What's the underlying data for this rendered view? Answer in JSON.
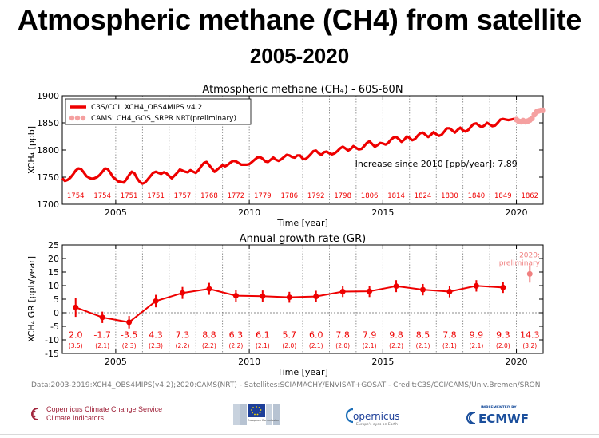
{
  "header": {
    "title": "Atmospheric methane (CH4) from satellite",
    "subtitle": "2005-2020"
  },
  "chart_data": [
    {
      "type": "line",
      "title": "Atmospheric methane (CH₄) - 60S-60N",
      "xlabel": "Time [year]",
      "ylabel": "XCH₄ [ppb]",
      "xlim": [
        2003.0,
        2021.0
      ],
      "ylim": [
        1700,
        1900
      ],
      "xticks": [
        2005,
        2010,
        2015,
        2020
      ],
      "yticks": [
        1700,
        1750,
        1800,
        1850,
        1900
      ],
      "legend_position": "top-left",
      "annotation": "Increase since 2010 [ppb/year]: 7.89",
      "series": [
        {
          "name": "C3S/CCI: XCH4_OBS4MIPS v4.2",
          "color": "#ee0000",
          "x": [
            2003.0,
            2003.1,
            2003.2,
            2003.3,
            2003.4,
            2003.5,
            2003.6,
            2003.7,
            2003.8,
            2003.9,
            2004.0,
            2004.1,
            2004.2,
            2004.3,
            2004.4,
            2004.5,
            2004.6,
            2004.7,
            2004.8,
            2004.9,
            2005.0,
            2005.1,
            2005.2,
            2005.3,
            2005.4,
            2005.5,
            2005.6,
            2005.7,
            2005.8,
            2005.9,
            2006.0,
            2006.1,
            2006.2,
            2006.3,
            2006.4,
            2006.5,
            2006.6,
            2006.7,
            2006.8,
            2006.9,
            2007.0,
            2007.1,
            2007.2,
            2007.3,
            2007.4,
            2007.5,
            2007.6,
            2007.7,
            2007.8,
            2007.9,
            2008.0,
            2008.1,
            2008.2,
            2008.3,
            2008.4,
            2008.5,
            2008.6,
            2008.7,
            2008.8,
            2008.9,
            2009.0,
            2009.1,
            2009.2,
            2009.3,
            2009.4,
            2009.5,
            2009.6,
            2009.7,
            2009.8,
            2009.9,
            2010.0,
            2010.1,
            2010.2,
            2010.3,
            2010.4,
            2010.5,
            2010.6,
            2010.7,
            2010.8,
            2010.9,
            2011.0,
            2011.1,
            2011.2,
            2011.3,
            2011.4,
            2011.5,
            2011.6,
            2011.7,
            2011.8,
            2011.9,
            2012.0,
            2012.1,
            2012.2,
            2012.3,
            2012.4,
            2012.5,
            2012.6,
            2012.7,
            2012.8,
            2012.9,
            2013.0,
            2013.1,
            2013.2,
            2013.3,
            2013.4,
            2013.5,
            2013.6,
            2013.7,
            2013.8,
            2013.9,
            2014.0,
            2014.1,
            2014.2,
            2014.3,
            2014.4,
            2014.5,
            2014.6,
            2014.7,
            2014.8,
            2014.9,
            2015.0,
            2015.1,
            2015.2,
            2015.3,
            2015.4,
            2015.5,
            2015.6,
            2015.7,
            2015.8,
            2015.9,
            2016.0,
            2016.1,
            2016.2,
            2016.3,
            2016.4,
            2016.5,
            2016.6,
            2016.7,
            2016.8,
            2016.9,
            2017.0,
            2017.1,
            2017.2,
            2017.3,
            2017.4,
            2017.5,
            2017.6,
            2017.7,
            2017.8,
            2017.9,
            2018.0,
            2018.1,
            2018.2,
            2018.3,
            2018.4,
            2018.5,
            2018.6,
            2018.7,
            2018.8,
            2018.9,
            2019.0,
            2019.1,
            2019.2,
            2019.3,
            2019.4,
            2019.5,
            2019.6,
            2019.7,
            2019.8,
            2019.9,
            2020.0
          ],
          "values": [
            1748,
            1743,
            1745,
            1749,
            1755,
            1762,
            1766,
            1765,
            1759,
            1752,
            1749,
            1747,
            1748,
            1750,
            1754,
            1760,
            1766,
            1765,
            1758,
            1750,
            1746,
            1742,
            1741,
            1740,
            1746,
            1754,
            1760,
            1757,
            1748,
            1741,
            1738,
            1740,
            1746,
            1752,
            1758,
            1760,
            1758,
            1756,
            1759,
            1757,
            1752,
            1748,
            1753,
            1758,
            1764,
            1762,
            1760,
            1759,
            1763,
            1760,
            1758,
            1763,
            1770,
            1776,
            1778,
            1772,
            1766,
            1760,
            1764,
            1768,
            1772,
            1770,
            1773,
            1777,
            1780,
            1779,
            1776,
            1773,
            1773,
            1773,
            1774,
            1778,
            1782,
            1786,
            1787,
            1784,
            1779,
            1778,
            1782,
            1786,
            1782,
            1780,
            1783,
            1787,
            1791,
            1790,
            1787,
            1786,
            1790,
            1790,
            1784,
            1783,
            1787,
            1792,
            1798,
            1799,
            1794,
            1791,
            1796,
            1797,
            1794,
            1792,
            1794,
            1798,
            1803,
            1806,
            1803,
            1799,
            1802,
            1807,
            1804,
            1801,
            1802,
            1807,
            1813,
            1816,
            1811,
            1806,
            1809,
            1813,
            1812,
            1810,
            1813,
            1819,
            1823,
            1824,
            1820,
            1815,
            1819,
            1825,
            1822,
            1818,
            1820,
            1826,
            1831,
            1832,
            1828,
            1824,
            1828,
            1833,
            1829,
            1826,
            1828,
            1834,
            1840,
            1840,
            1836,
            1832,
            1837,
            1841,
            1836,
            1834,
            1837,
            1843,
            1848,
            1849,
            1845,
            1842,
            1845,
            1850,
            1847,
            1844,
            1845,
            1850,
            1856,
            1857,
            1856,
            1855,
            1856,
            1857,
            1856
          ]
        },
        {
          "name": "CAMS: CH4_GOS_SRPR NRT(preliminary)",
          "color": "#f5a0a0",
          "x": [
            2020.0,
            2020.08,
            2020.17,
            2020.25,
            2020.33,
            2020.42,
            2020.5,
            2020.58,
            2020.67,
            2020.75,
            2020.83,
            2020.92,
            2021.0
          ],
          "values": [
            1856,
            1853,
            1852,
            1854,
            1852,
            1853,
            1855,
            1858,
            1865,
            1870,
            1872,
            1873,
            1873
          ]
        }
      ],
      "yearly_means": {
        "years": [
          2003,
          2004,
          2005,
          2006,
          2007,
          2008,
          2009,
          2010,
          2011,
          2012,
          2013,
          2014,
          2015,
          2016,
          2017,
          2018,
          2019,
          2020
        ],
        "values": [
          "1754",
          "1754",
          "1751",
          "1751",
          "1757",
          "1768",
          "1772",
          "1779",
          "1786",
          "1792",
          "1798",
          "1806",
          "1814",
          "1824",
          "1830",
          "1840",
          "1849",
          "1862"
        ]
      }
    },
    {
      "type": "scatter",
      "title": "Annual growth rate (GR)",
      "xlabel": "Time [year]",
      "ylabel": "XCH₄ GR [ppb/year]",
      "xlim": [
        2003.0,
        2021.0
      ],
      "ylim": [
        -15,
        25
      ],
      "xticks": [
        2005,
        2010,
        2015,
        2020
      ],
      "yticks": [
        -15,
        -10,
        -5,
        0,
        5,
        10,
        15,
        20,
        25
      ],
      "annotation": "2020:\npreliminary",
      "series": [
        {
          "color": "#ee0000",
          "x": [
            2003.5,
            2004.5,
            2005.5,
            2006.5,
            2007.5,
            2008.5,
            2009.5,
            2010.5,
            2011.5,
            2012.5,
            2013.5,
            2014.5,
            2015.5,
            2016.5,
            2017.5,
            2018.5,
            2019.5
          ],
          "values": [
            2.0,
            -1.7,
            -3.5,
            4.3,
            7.3,
            8.8,
            6.3,
            6.1,
            5.7,
            6.0,
            7.8,
            7.9,
            9.8,
            8.5,
            7.8,
            9.9,
            9.3
          ],
          "errors": [
            3.5,
            2.1,
            2.3,
            2.3,
            2.2,
            2.2,
            2.2,
            2.1,
            2.0,
            2.1,
            2.0,
            2.1,
            2.2,
            2.1,
            2.1,
            2.1,
            2.0
          ]
        },
        {
          "color": "#f08080",
          "x": [
            2020.5
          ],
          "values": [
            14.3
          ],
          "errors": [
            3.2
          ]
        }
      ],
      "value_labels": [
        "2.0",
        "-1.7",
        "-3.5",
        "4.3",
        "7.3",
        "8.8",
        "6.3",
        "6.1",
        "5.7",
        "6.0",
        "7.8",
        "7.9",
        "9.8",
        "8.5",
        "7.8",
        "9.9",
        "9.3",
        "14.3"
      ],
      "error_labels": [
        "(3.5)",
        "(2.1)",
        "(2.3)",
        "(2.3)",
        "(2.2)",
        "(2.2)",
        "(2.2)",
        "(2.1)",
        "(2.0)",
        "(2.1)",
        "(2.0)",
        "(2.1)",
        "(2.2)",
        "(2.1)",
        "(2.1)",
        "(2.1)",
        "(2.0)",
        "(3.2)"
      ]
    }
  ],
  "footer": {
    "source": "Data:2003-2019:XCH4_OBS4MIPS(v4.2);2020:CAMS(NRT) - Satellites:SCIAMACHY/ENVISAT+GOSAT - Credit:C3S/CCI/CAMS/Univ.Bremen/SRON",
    "c3s_line1": "Copernicus Climate Change Service",
    "c3s_line2": "Climate Indicators",
    "copernicus": "opernicus",
    "copernicus_sub": "Europe's eyes on Earth",
    "ecmwf_top": "IMPLEMENTED BY",
    "ecmwf": "ECMWF",
    "eu_text": "European Commission"
  },
  "colors": {
    "primary_series": "#ee0000",
    "preliminary_series": "#f5a0a0",
    "c3s_brand": "#a1253c",
    "ecmwf_brand": "#1b4f9c"
  }
}
